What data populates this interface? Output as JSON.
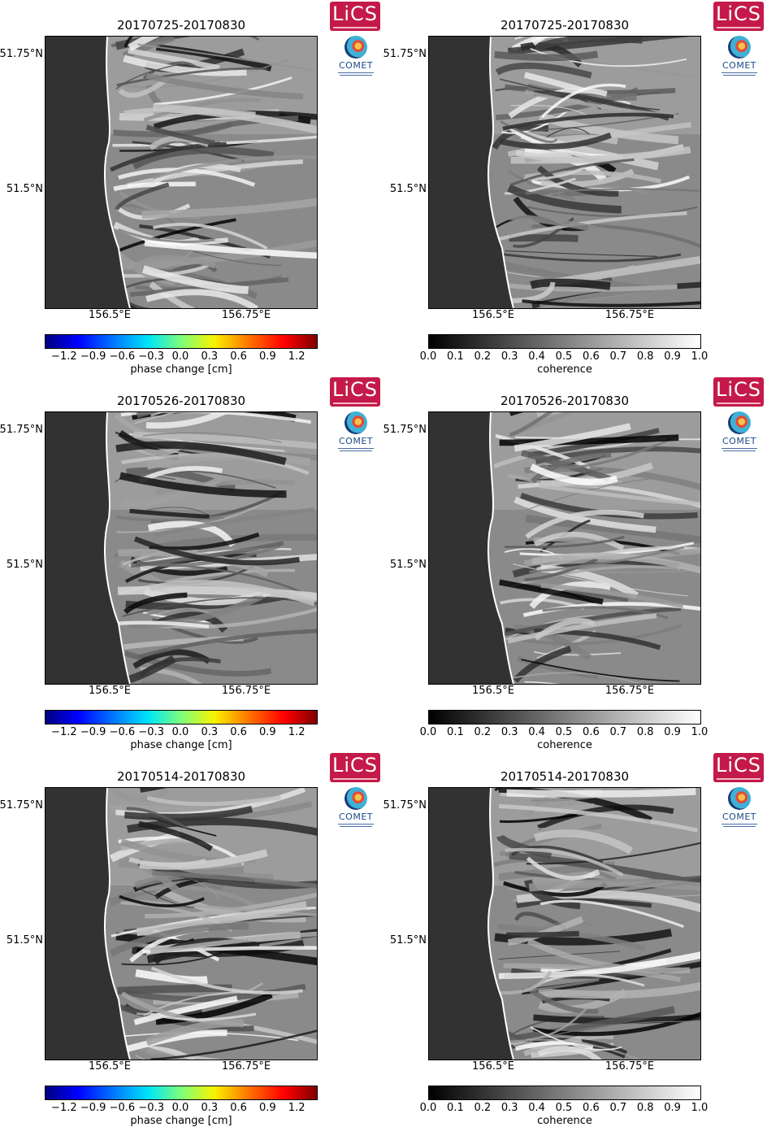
{
  "logos": {
    "lics": "LiCS",
    "comet": "COMET"
  },
  "axes": {
    "y_ticks": [
      "51.75°N",
      "51.5°N"
    ],
    "x_ticks": [
      "156.5°E",
      "156.75°E"
    ]
  },
  "colorbars": {
    "phase": {
      "label": "phase change [cm]",
      "ticks": [
        "−1.2",
        "−0.9",
        "−0.6",
        "−0.3",
        "0.0",
        "0.3",
        "0.6",
        "0.9",
        "1.2"
      ],
      "range": [
        -1.4,
        1.4
      ]
    },
    "coherence": {
      "label": "coherence",
      "ticks": [
        "0.0",
        "0.1",
        "0.2",
        "0.3",
        "0.4",
        "0.5",
        "0.6",
        "0.7",
        "0.8",
        "0.9",
        "1.0"
      ],
      "range": [
        0.0,
        1.0
      ]
    }
  },
  "panels": [
    {
      "title": "20170725-20170830",
      "kind": "phase"
    },
    {
      "title": "20170725-20170830",
      "kind": "coherence"
    },
    {
      "title": "20170526-20170830",
      "kind": "phase"
    },
    {
      "title": "20170526-20170830",
      "kind": "coherence"
    },
    {
      "title": "20170514-20170830",
      "kind": "phase"
    },
    {
      "title": "20170514-20170830",
      "kind": "coherence"
    }
  ],
  "chart_data": [
    {
      "type": "heatmap",
      "title": "20170725-20170830",
      "variable": "phase change [cm]",
      "colorbar_range": [
        -1.4,
        1.4
      ],
      "xlabel": "",
      "ylabel": "",
      "x_ticks": [
        "156.5°E",
        "156.75°E"
      ],
      "y_ticks": [
        "51.75°N",
        "51.5°N"
      ]
    },
    {
      "type": "heatmap",
      "title": "20170725-20170830",
      "variable": "coherence",
      "colorbar_range": [
        0.0,
        1.0
      ],
      "xlabel": "",
      "ylabel": "",
      "x_ticks": [
        "156.5°E",
        "156.75°E"
      ],
      "y_ticks": [
        "51.75°N",
        "51.5°N"
      ]
    },
    {
      "type": "heatmap",
      "title": "20170526-20170830",
      "variable": "phase change [cm]",
      "colorbar_range": [
        -1.4,
        1.4
      ],
      "xlabel": "",
      "ylabel": "",
      "x_ticks": [
        "156.5°E",
        "156.75°E"
      ],
      "y_ticks": [
        "51.75°N",
        "51.5°N"
      ]
    },
    {
      "type": "heatmap",
      "title": "20170526-20170830",
      "variable": "coherence",
      "colorbar_range": [
        0.0,
        1.0
      ],
      "xlabel": "",
      "ylabel": "",
      "x_ticks": [
        "156.5°E",
        "156.75°E"
      ],
      "y_ticks": [
        "51.75°N",
        "51.5°N"
      ]
    },
    {
      "type": "heatmap",
      "title": "20170514-20170830",
      "variable": "phase change [cm]",
      "colorbar_range": [
        -1.4,
        1.4
      ],
      "xlabel": "",
      "ylabel": "",
      "x_ticks": [
        "156.5°E",
        "156.75°E"
      ],
      "y_ticks": [
        "51.75°N",
        "51.5°N"
      ]
    },
    {
      "type": "heatmap",
      "title": "20170514-20170830",
      "variable": "coherence",
      "colorbar_range": [
        0.0,
        1.0
      ],
      "xlabel": "",
      "ylabel": "",
      "x_ticks": [
        "156.5°E",
        "156.75°E"
      ],
      "y_ticks": [
        "51.75°N",
        "51.5°N"
      ]
    }
  ]
}
